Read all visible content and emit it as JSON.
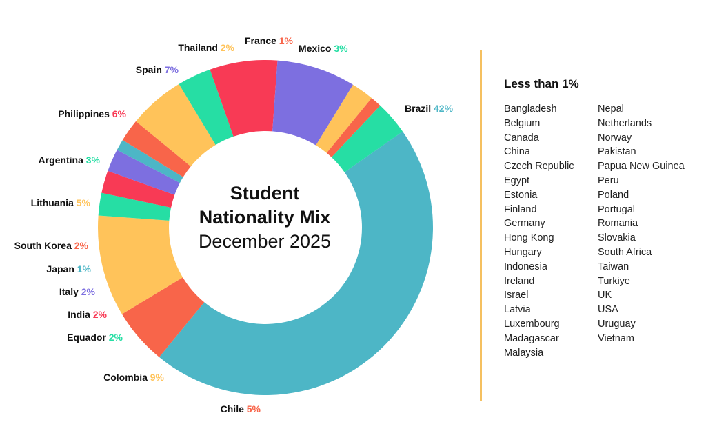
{
  "chart_data": {
    "type": "pie",
    "title": "Student",
    "title_line2": "Nationality Mix",
    "subtitle": "December 2025",
    "slices": [
      {
        "label": "Brazil",
        "pct_label": "42%",
        "value": 42,
        "color": "#4db6c6",
        "label_color": "#4db6c6"
      },
      {
        "label": "Chile",
        "pct_label": "5%",
        "value": 5,
        "color": "#f8654a",
        "label_color": "#f8654a"
      },
      {
        "label": "Colombia",
        "pct_label": "9%",
        "value": 9,
        "color": "#ffc35a",
        "label_color": "#ffc35a"
      },
      {
        "label": "Equador",
        "pct_label": "2%",
        "value": 2,
        "color": "#26dea4",
        "label_color": "#26dea4"
      },
      {
        "label": "India",
        "pct_label": "2%",
        "value": 2,
        "color": "#f83a55",
        "label_color": "#f83a55"
      },
      {
        "label": "Italy",
        "pct_label": "2%",
        "value": 2,
        "color": "#7d6fe0",
        "label_color": "#7d6fe0"
      },
      {
        "label": "Japan",
        "pct_label": "1%",
        "value": 1,
        "color": "#4db6c6",
        "label_color": "#4db6c6"
      },
      {
        "label": "South Korea",
        "pct_label": "2%",
        "value": 2,
        "color": "#f8654a",
        "label_color": "#f8654a"
      },
      {
        "label": "Lithuania",
        "pct_label": "5%",
        "value": 5,
        "color": "#ffc35a",
        "label_color": "#ffc35a"
      },
      {
        "label": "Argentina",
        "pct_label": "3%",
        "value": 3,
        "color": "#26dea4",
        "label_color": "#26dea4"
      },
      {
        "label": "Philippines",
        "pct_label": "6%",
        "value": 6,
        "color": "#f83a55",
        "label_color": "#f83a55"
      },
      {
        "label": "Spain",
        "pct_label": "7%",
        "value": 7,
        "color": "#7d6fe0",
        "label_color": "#7d6fe0"
      },
      {
        "label": "Thailand",
        "pct_label": "2%",
        "value": 2,
        "color": "#ffc35a",
        "label_color": "#ffc35a"
      },
      {
        "label": "France",
        "pct_label": "1%",
        "value": 1,
        "color": "#f8654a",
        "label_color": "#f8654a"
      },
      {
        "label": "Mexico",
        "pct_label": "3%",
        "value": 3,
        "color": "#26dea4",
        "label_color": "#26dea4"
      }
    ]
  },
  "legend": {
    "title": "Less than 1%",
    "column_1": [
      "Bangladesh",
      "Belgium",
      "Canada",
      "China",
      "Czech Republic",
      "Egypt",
      "Estonia",
      "Finland",
      "Germany",
      "Hong Kong",
      "Hungary",
      "Indonesia",
      "Ireland",
      "Israel",
      "Latvia",
      "Luxembourg",
      "Madagascar",
      "Malaysia"
    ],
    "column_2": [
      "Nepal",
      "Netherlands",
      "Norway",
      "Pakistan",
      "Papua New Guinea",
      "Peru",
      "Poland",
      "Portugal",
      "Romania",
      "Slovakia",
      "South Africa",
      "Taiwan",
      "Turkiye",
      "UK",
      "USA",
      "Uruguay",
      "Vietnam"
    ]
  }
}
